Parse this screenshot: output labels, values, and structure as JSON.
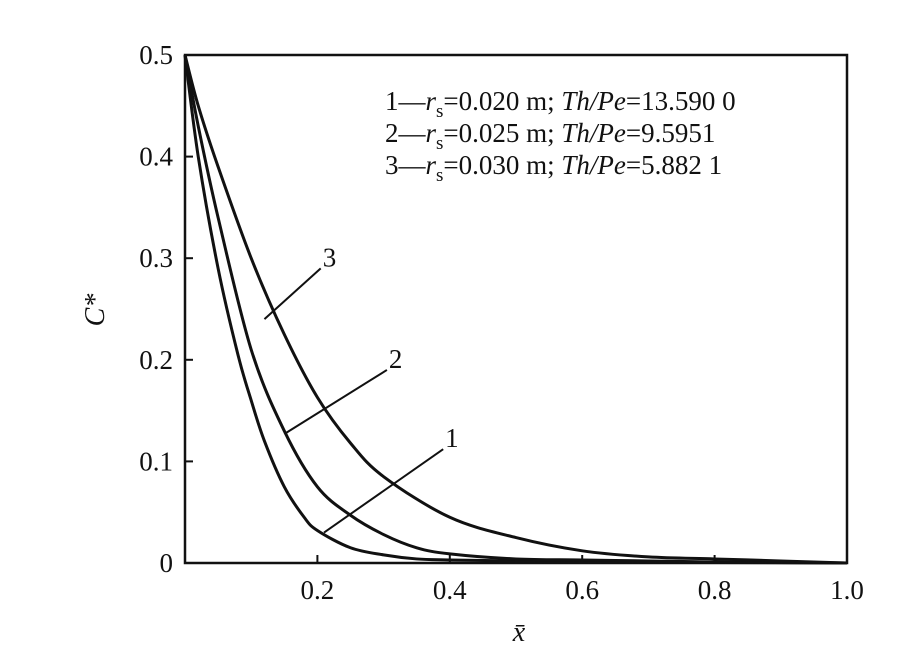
{
  "chart_data": {
    "type": "line",
    "title": "",
    "xlabel": "x̄",
    "ylabel": "C*",
    "xlim": [
      0,
      1.0
    ],
    "ylim": [
      0,
      0.5
    ],
    "x_ticks": [
      "0.2",
      "0.4",
      "0.6",
      "0.8",
      "1.0"
    ],
    "x_tick_values": [
      0.2,
      0.4,
      0.6,
      0.8,
      1.0
    ],
    "y_ticks": [
      "0",
      "0.1",
      "0.2",
      "0.3",
      "0.4",
      "0.5"
    ],
    "y_tick_values": [
      0,
      0.1,
      0.2,
      0.3,
      0.4,
      0.5
    ],
    "grid": false,
    "legend_position": "top-right",
    "legend": [
      {
        "id": "1",
        "prefix": "1—",
        "r_label": "r",
        "r_sub": "s",
        "r_value": "=0.020 m; ",
        "ratio_label": "Th/Pe",
        "ratio_value": "=13.590 0"
      },
      {
        "id": "2",
        "prefix": "2—",
        "r_label": "r",
        "r_sub": "s",
        "r_value": "=0.025 m; ",
        "ratio_label": "Th/Pe",
        "ratio_value": "=9.5951"
      },
      {
        "id": "3",
        "prefix": "3—",
        "r_label": "r",
        "r_sub": "s",
        "r_value": "=0.030 m; ",
        "ratio_label": "Th/Pe",
        "ratio_value": "=5.882 1"
      }
    ],
    "series": [
      {
        "label": "1",
        "x": [
          0,
          0.02,
          0.05,
          0.08,
          0.1,
          0.12,
          0.15,
          0.18,
          0.2,
          0.25,
          0.3,
          0.35,
          0.4,
          0.5,
          0.6,
          0.8,
          1.0
        ],
        "y": [
          0.5,
          0.4,
          0.29,
          0.205,
          0.16,
          0.12,
          0.075,
          0.045,
          0.032,
          0.015,
          0.008,
          0.004,
          0.003,
          0.002,
          0.001,
          0.0005,
          0.0
        ]
      },
      {
        "label": "2",
        "x": [
          0,
          0.02,
          0.05,
          0.1,
          0.15,
          0.2,
          0.25,
          0.3,
          0.35,
          0.4,
          0.5,
          0.6,
          0.7,
          0.8,
          1.0
        ],
        "y": [
          0.5,
          0.43,
          0.34,
          0.21,
          0.13,
          0.075,
          0.047,
          0.028,
          0.015,
          0.009,
          0.004,
          0.003,
          0.002,
          0.001,
          0.0
        ]
      },
      {
        "label": "3",
        "x": [
          0,
          0.02,
          0.05,
          0.1,
          0.15,
          0.2,
          0.25,
          0.3,
          0.4,
          0.5,
          0.6,
          0.7,
          0.8,
          0.9,
          1.0
        ],
        "y": [
          0.5,
          0.45,
          0.39,
          0.3,
          0.225,
          0.163,
          0.118,
          0.085,
          0.045,
          0.025,
          0.012,
          0.006,
          0.004,
          0.002,
          0.0
        ]
      }
    ],
    "curve_labels": [
      {
        "text": "1",
        "series": "1",
        "leader_from": [
          0.21,
          0.03
        ],
        "leader_to": [
          0.39,
          0.112
        ]
      },
      {
        "text": "2",
        "series": "2",
        "leader_from": [
          0.15,
          0.127
        ],
        "leader_to": [
          0.305,
          0.19
        ]
      },
      {
        "text": "3",
        "series": "3",
        "leader_from": [
          0.12,
          0.24
        ],
        "leader_to": [
          0.205,
          0.29
        ]
      }
    ]
  }
}
